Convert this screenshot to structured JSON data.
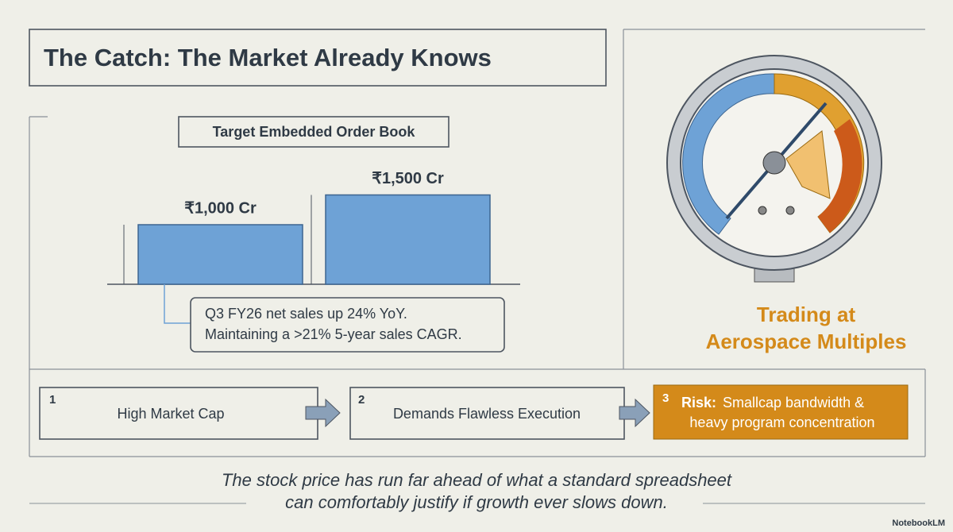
{
  "header": {
    "title": "The Catch: The Market Already Knows"
  },
  "chart_data": {
    "type": "bar",
    "title": "Target Embedded Order Book",
    "categories": [
      null,
      null
    ],
    "values": [
      1000,
      1500
    ],
    "value_labels": [
      "₹1,000 Cr",
      "₹1,500 Cr"
    ],
    "color": "#6ea2d6"
  },
  "callout": [
    "Q3 FY26 net sales up 24% YoY.",
    "Maintaining a >21% 5-year sales CAGR."
  ],
  "gauge": {
    "label": [
      "Trading at",
      "Aerospace Multiples"
    ]
  },
  "flow": [
    {
      "number": "1",
      "text": [
        "High Market Cap"
      ]
    },
    {
      "number": "2",
      "text": [
        "Demands Flawless Execution"
      ]
    },
    {
      "number": "3",
      "label": "Risk:",
      "text": [
        "Smallcap bandwidth &",
        "heavy program concentration"
      ]
    }
  ],
  "footer": {
    "caption": [
      "The stock price has run far ahead of what a standard spreadsheet",
      "can comfortably justify if growth ever slows down."
    ],
    "brand": "NotebookLM"
  }
}
